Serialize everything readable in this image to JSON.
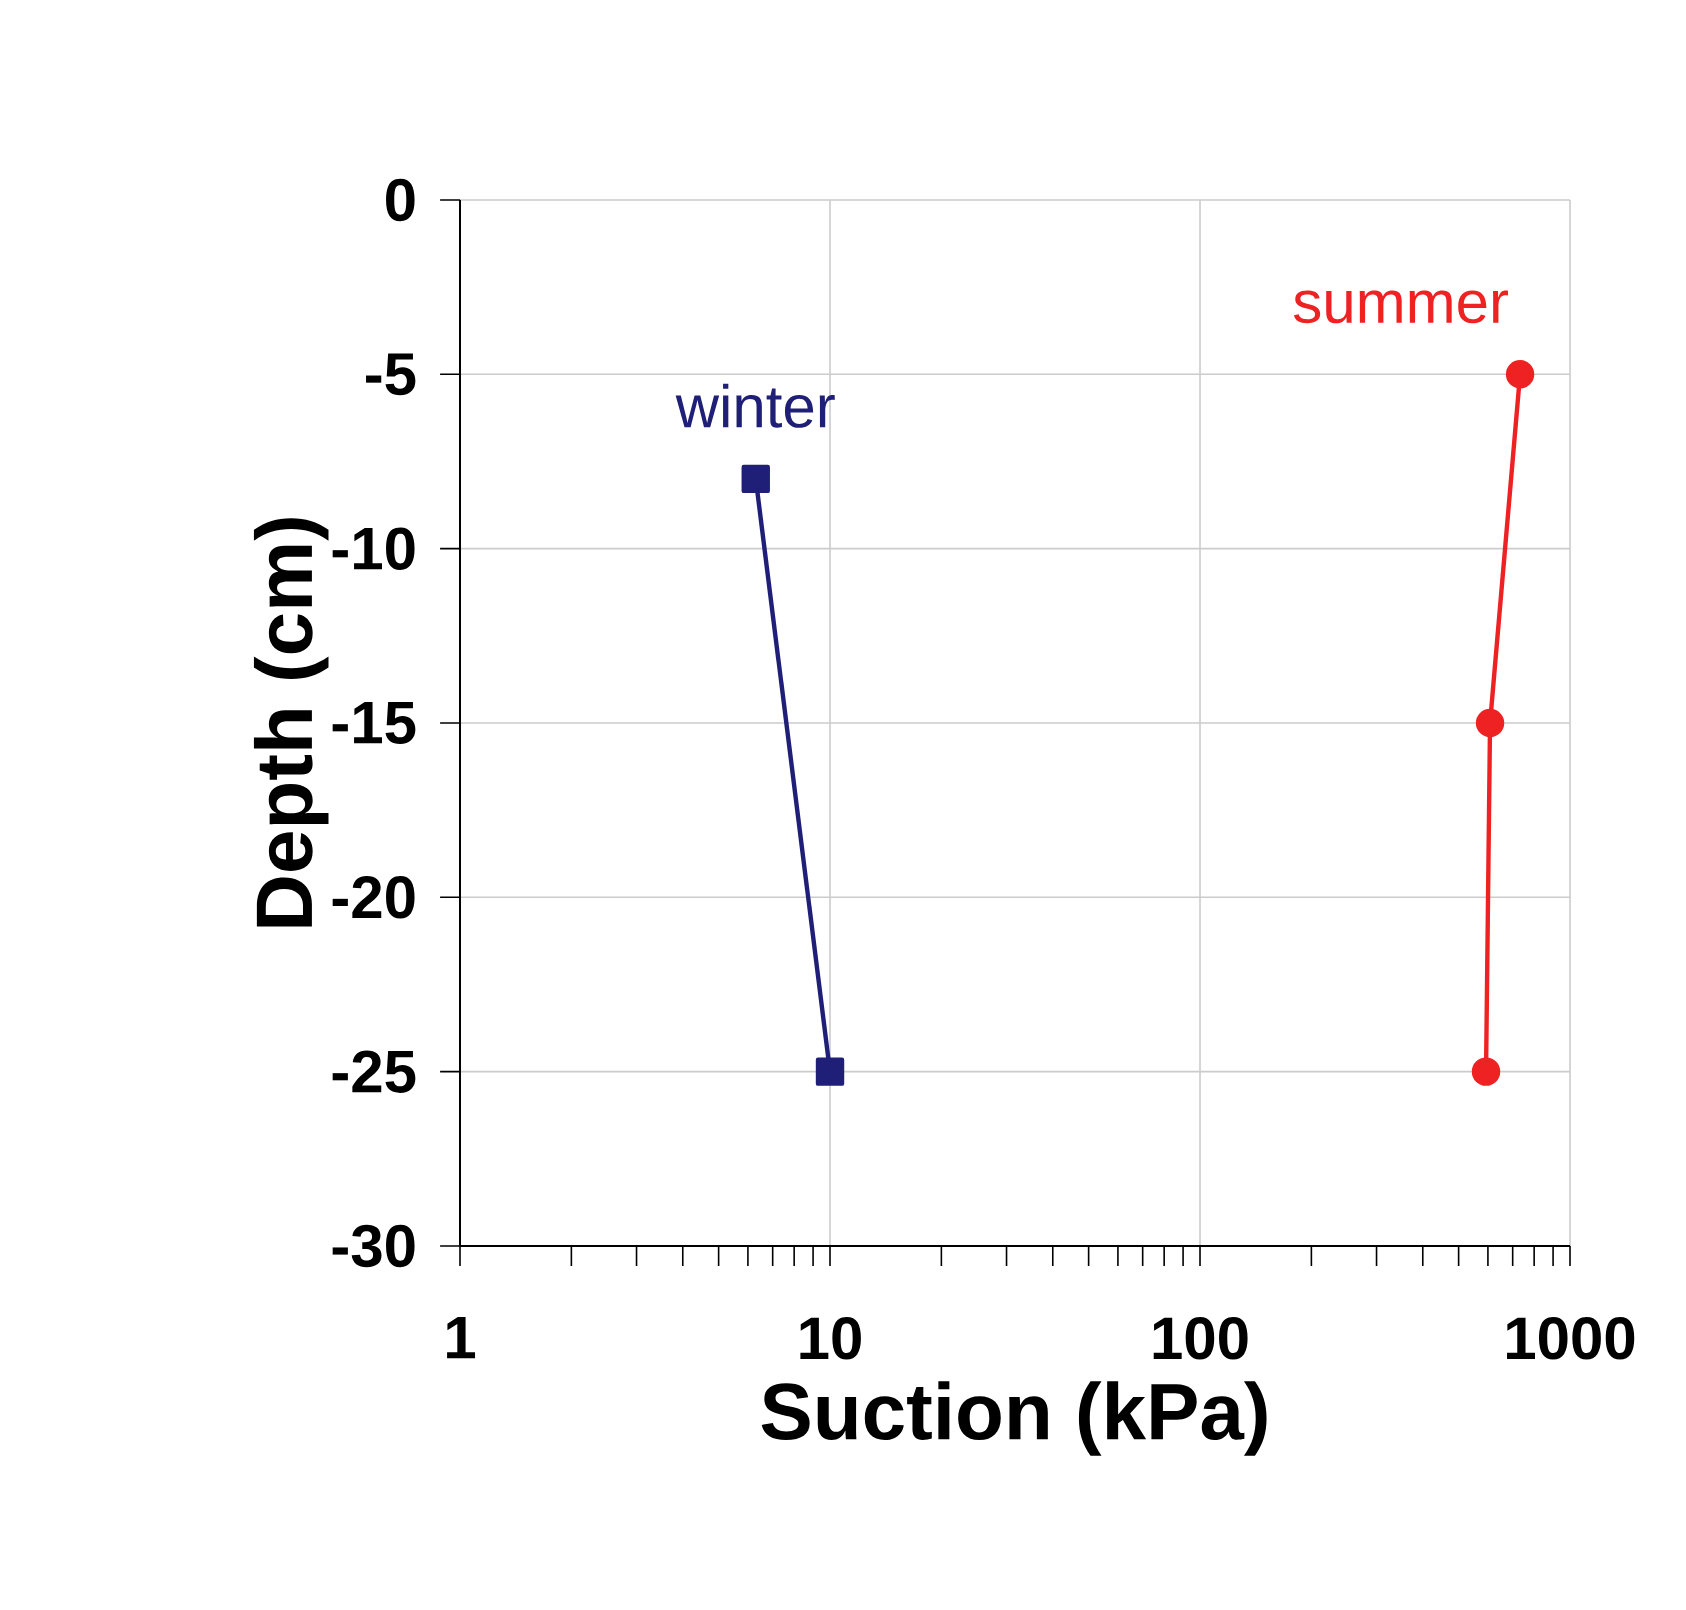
{
  "chart_data": {
    "type": "line",
    "xlabel": "Suction (kPa)",
    "ylabel": "Depth (cm)",
    "log": "x",
    "grid": true,
    "xlim": [
      1,
      1000
    ],
    "xticks": [
      1,
      10,
      100,
      1000
    ],
    "ylim": [
      -30,
      0
    ],
    "yticks": [
      -30,
      -25,
      -20,
      -15,
      -10,
      -5,
      0
    ],
    "series": [
      {
        "name": "winter",
        "color": "#1f1f78",
        "marker": "square",
        "x": [
          6.3,
          10
        ],
        "values": [
          -8,
          -25
        ]
      },
      {
        "name": "summer",
        "color": "#ee2222",
        "marker": "circle",
        "x": [
          733,
          608,
          593
        ],
        "values": [
          -5,
          -15,
          -25
        ]
      }
    ]
  }
}
